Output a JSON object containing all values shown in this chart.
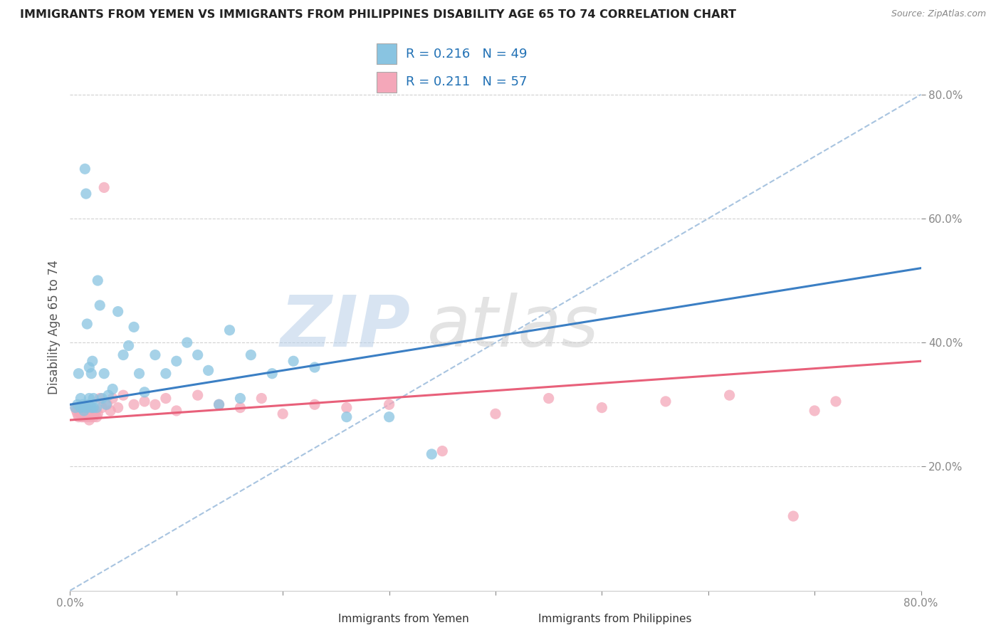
{
  "title": "IMMIGRANTS FROM YEMEN VS IMMIGRANTS FROM PHILIPPINES DISABILITY AGE 65 TO 74 CORRELATION CHART",
  "source": "Source: ZipAtlas.com",
  "ylabel": "Disability Age 65 to 74",
  "xmin": 0.0,
  "xmax": 0.8,
  "ymin": 0.0,
  "ymax": 0.85,
  "yticks": [
    0.2,
    0.4,
    0.6,
    0.8
  ],
  "xticks": [
    0.0,
    0.1,
    0.2,
    0.3,
    0.4,
    0.5,
    0.6,
    0.7,
    0.8
  ],
  "legend_blue_label": "Immigrants from Yemen",
  "legend_pink_label": "Immigrants from Philippines",
  "R_blue": 0.216,
  "N_blue": 49,
  "R_pink": 0.211,
  "N_pink": 57,
  "blue_scatter_color": "#89c4e1",
  "pink_scatter_color": "#f4a7b9",
  "blue_line_color": "#3b7fc4",
  "pink_line_color": "#e8607a",
  "dashed_line_color": "#a8c4e0",
  "tick_color": "#4472c4",
  "background_color": "#ffffff",
  "yemen_x": [
    0.005,
    0.007,
    0.008,
    0.01,
    0.01,
    0.012,
    0.013,
    0.014,
    0.015,
    0.015,
    0.016,
    0.017,
    0.018,
    0.018,
    0.02,
    0.02,
    0.021,
    0.022,
    0.022,
    0.025,
    0.026,
    0.028,
    0.03,
    0.032,
    0.034,
    0.036,
    0.04,
    0.045,
    0.05,
    0.055,
    0.06,
    0.065,
    0.07,
    0.08,
    0.09,
    0.1,
    0.11,
    0.12,
    0.13,
    0.14,
    0.15,
    0.16,
    0.17,
    0.19,
    0.21,
    0.23,
    0.26,
    0.3,
    0.34
  ],
  "yemen_y": [
    0.295,
    0.3,
    0.35,
    0.295,
    0.31,
    0.3,
    0.29,
    0.68,
    0.64,
    0.295,
    0.43,
    0.3,
    0.31,
    0.36,
    0.295,
    0.35,
    0.37,
    0.295,
    0.31,
    0.295,
    0.5,
    0.46,
    0.31,
    0.35,
    0.3,
    0.315,
    0.325,
    0.45,
    0.38,
    0.395,
    0.425,
    0.35,
    0.32,
    0.38,
    0.35,
    0.37,
    0.4,
    0.38,
    0.355,
    0.3,
    0.42,
    0.31,
    0.38,
    0.35,
    0.37,
    0.36,
    0.28,
    0.28,
    0.22
  ],
  "philippines_x": [
    0.005,
    0.006,
    0.007,
    0.008,
    0.009,
    0.01,
    0.01,
    0.011,
    0.012,
    0.012,
    0.013,
    0.014,
    0.015,
    0.015,
    0.016,
    0.017,
    0.018,
    0.018,
    0.019,
    0.02,
    0.021,
    0.022,
    0.022,
    0.023,
    0.024,
    0.025,
    0.026,
    0.028,
    0.03,
    0.032,
    0.035,
    0.038,
    0.04,
    0.045,
    0.05,
    0.06,
    0.07,
    0.08,
    0.09,
    0.1,
    0.12,
    0.14,
    0.16,
    0.18,
    0.2,
    0.23,
    0.26,
    0.3,
    0.35,
    0.4,
    0.45,
    0.5,
    0.56,
    0.62,
    0.68,
    0.7,
    0.72
  ],
  "philippines_y": [
    0.295,
    0.29,
    0.285,
    0.28,
    0.29,
    0.285,
    0.295,
    0.28,
    0.285,
    0.29,
    0.28,
    0.285,
    0.29,
    0.295,
    0.28,
    0.285,
    0.275,
    0.29,
    0.28,
    0.285,
    0.29,
    0.28,
    0.285,
    0.285,
    0.29,
    0.28,
    0.285,
    0.31,
    0.295,
    0.65,
    0.3,
    0.29,
    0.31,
    0.295,
    0.315,
    0.3,
    0.305,
    0.3,
    0.31,
    0.29,
    0.315,
    0.3,
    0.295,
    0.31,
    0.285,
    0.3,
    0.295,
    0.3,
    0.225,
    0.285,
    0.31,
    0.295,
    0.305,
    0.315,
    0.12,
    0.29,
    0.305
  ],
  "blue_trend_x0": 0.0,
  "blue_trend_y0": 0.3,
  "blue_trend_x1": 0.8,
  "blue_trend_y1": 0.52,
  "pink_trend_x0": 0.0,
  "pink_trend_y0": 0.275,
  "pink_trend_x1": 0.8,
  "pink_trend_y1": 0.37
}
